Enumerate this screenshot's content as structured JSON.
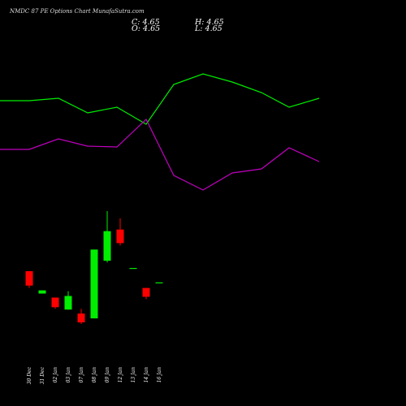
{
  "header": {
    "title": "NMDC 87 PE Options  Chart MunafaSutra.com",
    "close": "C: 4.65",
    "high": "H: 4.65",
    "open": "O: 4.65",
    "low": "L: 4.65"
  },
  "chart_data": {
    "type": "candlestick",
    "categories": [
      "30 Dec",
      "31 Dec",
      "02 Jan",
      "03 Jan",
      "07 Jan",
      "08 Jan",
      "09 Jan",
      "12 Jan",
      "13 Jan",
      "14 Jan",
      "16 Jan"
    ],
    "x_label_keys": [
      "d0",
      "d1",
      "d2",
      "d3",
      "d4",
      "d5",
      "d6",
      "d7",
      "d8",
      "d9",
      "d10"
    ],
    "candles": [
      {
        "date": "30 Dec",
        "open": 5.35,
        "high": 5.35,
        "low": 4.3,
        "close": 4.45,
        "color": "#ff0000"
      },
      {
        "date": "31 Dec",
        "open": 3.95,
        "high": 4.15,
        "low": 3.95,
        "close": 4.15,
        "color": "#00ee00"
      },
      {
        "date": "02 Jan",
        "open": 3.7,
        "high": 3.7,
        "low": 3.0,
        "close": 3.1,
        "color": "#ff0000"
      },
      {
        "date": "03 Jan",
        "open": 2.95,
        "high": 4.1,
        "low": 2.95,
        "close": 3.8,
        "color": "#00ee00"
      },
      {
        "date": "07 Jan",
        "open": 2.7,
        "high": 3.0,
        "low": 2.05,
        "close": 2.15,
        "color": "#ff0000"
      },
      {
        "date": "08 Jan",
        "open": 2.4,
        "high": 6.7,
        "low": 2.4,
        "close": 6.7,
        "color": "#00ee00"
      },
      {
        "date": "09 Jan",
        "open": 6.0,
        "high": 9.1,
        "low": 5.9,
        "close": 7.85,
        "color": "#00ee00"
      },
      {
        "date": "12 Jan",
        "open": 7.95,
        "high": 8.65,
        "low": 6.95,
        "close": 7.1,
        "color": "#ff0000"
      },
      {
        "date": "13 Jan",
        "open": 5.55,
        "high": 5.55,
        "low": 5.5,
        "close": 5.5,
        "color": "#00ee00"
      },
      {
        "date": "14 Jan",
        "open": 4.3,
        "high": 4.3,
        "low": 3.6,
        "close": 3.75,
        "color": "#ff0000"
      },
      {
        "date": "16 Jan",
        "open": 4.65,
        "high": 4.65,
        "low": 4.65,
        "close": 4.65,
        "color": "#00ee00"
      }
    ],
    "upper_band": [
      124,
      124,
      121,
      139,
      132,
      153,
      104,
      91,
      101,
      114,
      132,
      121
    ],
    "lower_band": [
      184,
      184,
      171,
      180,
      181,
      147,
      216,
      234,
      213,
      208,
      182,
      199
    ],
    "band_x": [
      0,
      36,
      72,
      108,
      144,
      180,
      214,
      250,
      286,
      322,
      356,
      393
    ],
    "colors": {
      "background": "#000000",
      "up": "#00ee00",
      "down": "#ff0000",
      "upper_line": "#00ee00",
      "lower_line": "#c000c0"
    }
  }
}
